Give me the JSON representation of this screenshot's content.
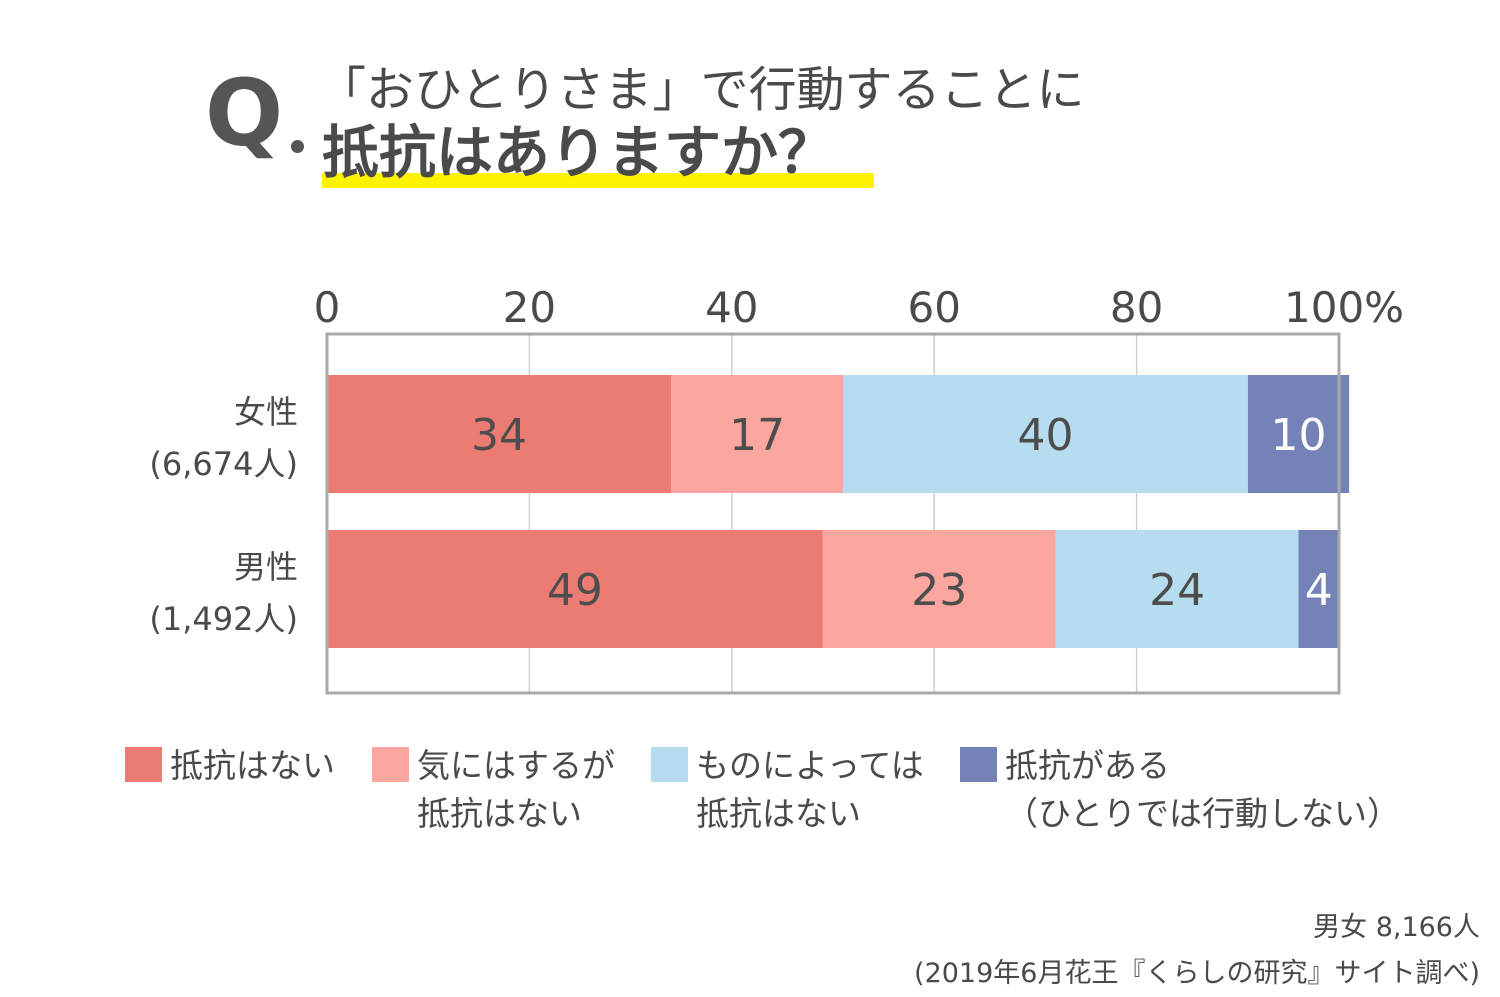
{
  "header": {
    "q_label": "Q",
    "line1": "「おひとりさま」で行動することに",
    "line2": "抵抗はありますか？"
  },
  "chart_data": {
    "type": "bar",
    "orientation": "horizontal",
    "stacked": true,
    "xlim": [
      0,
      100
    ],
    "x_ticks": [
      "0",
      "20",
      "40",
      "60",
      "80",
      "100%"
    ],
    "grid": true,
    "categories": [
      {
        "name": "女性",
        "sub": "(6,674人)"
      },
      {
        "name": "男性",
        "sub": "(1,492人)"
      }
    ],
    "series": [
      {
        "name": "抵抗はない",
        "values": [
          34,
          49
        ],
        "color": "#ec7b74",
        "label_color": "#4d4d4d"
      },
      {
        "name": "気にはするが抵抗はない",
        "values": [
          17,
          23
        ],
        "color": "#fba69e",
        "label_color": "#4d4d4d"
      },
      {
        "name": "ものによっては抵抗はない",
        "values": [
          40,
          24
        ],
        "color": "#b6dcef",
        "label_color": "#4d4d4d"
      },
      {
        "name": "抵抗がある（ひとりでは行動しない）",
        "values": [
          10,
          4
        ],
        "color": "#7482b8",
        "label_color": "#ffffff"
      }
    ],
    "legend_position": "bottom"
  },
  "legend": [
    {
      "lines": [
        "抵抗はない"
      ]
    },
    {
      "lines": [
        "気にはするが",
        "抵抗はない"
      ]
    },
    {
      "lines": [
        "ものによっては",
        "抵抗はない"
      ]
    },
    {
      "lines": [
        "抵抗がある",
        "（ひとりでは行動しない）"
      ]
    }
  ],
  "source": {
    "line1": "男女 8,166人",
    "line2": "(2019年6月花王『くらしの研究』サイト調べ)"
  }
}
